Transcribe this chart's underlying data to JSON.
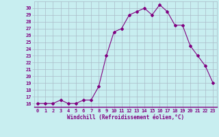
{
  "x": [
    0,
    1,
    2,
    3,
    4,
    5,
    6,
    7,
    8,
    9,
    10,
    11,
    12,
    13,
    14,
    15,
    16,
    17,
    18,
    19,
    20,
    21,
    22,
    23
  ],
  "y": [
    16,
    16,
    16,
    16.5,
    16,
    16,
    16.5,
    16.5,
    18.5,
    23,
    26.5,
    27,
    29,
    29.5,
    30,
    29,
    30.5,
    29.5,
    27.5,
    27.5,
    24.5,
    23,
    21.5,
    19
  ],
  "line_color": "#800080",
  "marker": "D",
  "marker_size": 2.0,
  "bg_color": "#c8eef0",
  "grid_color": "#aabbc8",
  "xlabel": "Windchill (Refroidissement éolien,°C)",
  "tick_color": "#800080",
  "label_color": "#800080",
  "ylim": [
    15.5,
    31
  ],
  "xlim": [
    -0.5,
    23.5
  ],
  "yticks": [
    16,
    17,
    18,
    19,
    20,
    21,
    22,
    23,
    24,
    25,
    26,
    27,
    28,
    29,
    30
  ],
  "xticks": [
    0,
    1,
    2,
    3,
    4,
    5,
    6,
    7,
    8,
    9,
    10,
    11,
    12,
    13,
    14,
    15,
    16,
    17,
    18,
    19,
    20,
    21,
    22,
    23
  ],
  "xtick_labels": [
    "0",
    "1",
    "2",
    "3",
    "4",
    "5",
    "6",
    "7",
    "8",
    "9",
    "10",
    "11",
    "12",
    "13",
    "14",
    "15",
    "16",
    "17",
    "18",
    "19",
    "20",
    "21",
    "22",
    "23"
  ],
  "ytick_labels": [
    "16",
    "17",
    "18",
    "19",
    "20",
    "21",
    "22",
    "23",
    "24",
    "25",
    "26",
    "27",
    "28",
    "29",
    "30"
  ]
}
